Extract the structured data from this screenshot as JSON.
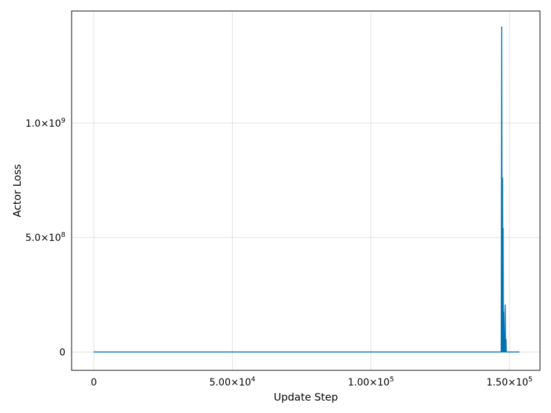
{
  "chart_data": {
    "type": "line",
    "xlabel": "Update Step",
    "ylabel": "Actor Loss",
    "xlim": [
      -8000,
      161000
    ],
    "ylim": [
      -80000000,
      1490000000
    ],
    "grid": true,
    "x_ticks": [
      {
        "value": 0,
        "label": "0"
      },
      {
        "value": 50000,
        "base": "5.00×10",
        "exp": "4"
      },
      {
        "value": 100000,
        "base": "1.00×10",
        "exp": "5"
      },
      {
        "value": 150000,
        "base": "1.50×10",
        "exp": "5"
      }
    ],
    "y_ticks": [
      {
        "value": 0,
        "label": "0"
      },
      {
        "value": 500000000,
        "base": "5.0×10",
        "exp": "8"
      },
      {
        "value": 1000000000,
        "base": "1.0×10",
        "exp": "9"
      }
    ],
    "series": [
      {
        "color": "#0072b2",
        "points": [
          [
            0,
            0
          ],
          [
            147000,
            0
          ],
          [
            147200,
            1420000000
          ],
          [
            147350,
            0
          ],
          [
            147500,
            760000000
          ],
          [
            147600,
            0
          ],
          [
            147700,
            540000000
          ],
          [
            147800,
            0
          ],
          [
            147900,
            175000000
          ],
          [
            148000,
            0
          ],
          [
            148150,
            60000000
          ],
          [
            148250,
            0
          ],
          [
            148450,
            205000000
          ],
          [
            148550,
            0
          ],
          [
            148750,
            55000000
          ],
          [
            148850,
            0
          ],
          [
            153500,
            0
          ]
        ]
      }
    ]
  }
}
